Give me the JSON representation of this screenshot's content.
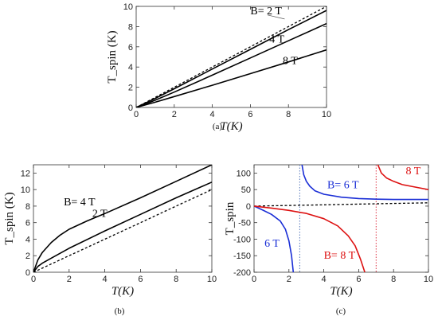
{
  "chart_data": [
    {
      "type": "line",
      "caption": "(a)",
      "xlabel": "T(K)",
      "ylabel": "T_spin (K)",
      "xlim": [
        0,
        10
      ],
      "ylim": [
        0,
        10
      ],
      "xticks": [
        0,
        2,
        4,
        6,
        8,
        10
      ],
      "yticks": [
        0,
        2,
        4,
        6,
        8,
        10
      ],
      "series": [
        {
          "style": "dashed",
          "color": "#000000",
          "x": [
            0,
            2,
            4,
            6,
            8,
            10
          ],
          "y": [
            0,
            2,
            4,
            6,
            8,
            10
          ]
        },
        {
          "name": "B= 2 T",
          "style": "solid",
          "color": "#000000",
          "x": [
            0,
            1,
            2,
            4,
            6,
            8,
            10
          ],
          "y": [
            0,
            0.9,
            1.85,
            3.8,
            5.75,
            7.7,
            9.6
          ]
        },
        {
          "name": "4 T",
          "style": "solid",
          "color": "#000000",
          "x": [
            0,
            1,
            2,
            4,
            6,
            8,
            10
          ],
          "y": [
            0,
            0.72,
            1.52,
            3.2,
            4.9,
            6.6,
            8.3
          ]
        },
        {
          "name": "8 T",
          "style": "solid",
          "color": "#000000",
          "x": [
            0,
            1,
            2,
            4,
            6,
            8,
            10
          ],
          "y": [
            0,
            0.52,
            1.08,
            2.2,
            3.35,
            4.5,
            5.7
          ]
        }
      ],
      "annotations": [
        {
          "text": "B= 2 T",
          "x": 6.0,
          "y": 9.2,
          "color": "#000000"
        },
        {
          "text": "4 T",
          "x": 7.0,
          "y": 6.4,
          "color": "#000000"
        },
        {
          "text": "8 T",
          "x": 7.7,
          "y": 4.3,
          "color": "#000000"
        }
      ],
      "pointer": {
        "from": [
          6.9,
          9.15
        ],
        "to": [
          7.8,
          8.75
        ]
      }
    },
    {
      "type": "line",
      "caption": "(b)",
      "xlabel": "T(K)",
      "ylabel": "T_spin (K)",
      "xlim": [
        0,
        10
      ],
      "ylim": [
        0,
        13
      ],
      "xticks": [
        0,
        2,
        4,
        6,
        8,
        10
      ],
      "yticks": [
        0,
        2,
        4,
        6,
        8,
        10,
        12
      ],
      "series": [
        {
          "style": "dashed",
          "color": "#000000",
          "x": [
            0,
            2,
            4,
            6,
            8,
            10
          ],
          "y": [
            0,
            2,
            4,
            6,
            8,
            10
          ]
        },
        {
          "name": "2 T",
          "style": "solid",
          "color": "#000000",
          "x": [
            0,
            0.25,
            0.5,
            1,
            2,
            4,
            6,
            8,
            10
          ],
          "y": [
            0,
            0.7,
            1.1,
            1.7,
            2.9,
            5.0,
            7.0,
            9.0,
            10.9
          ]
        },
        {
          "name": "B= 4 T",
          "style": "solid",
          "color": "#000000",
          "x": [
            0,
            0.25,
            0.5,
            1,
            1.5,
            2,
            3,
            4,
            6,
            8,
            10
          ],
          "y": [
            0,
            1.5,
            2.4,
            3.6,
            4.5,
            5.2,
            6.2,
            7.1,
            9.0,
            11.0,
            13.0
          ]
        }
      ],
      "annotations": [
        {
          "text": "B= 4 T",
          "x": 1.7,
          "y": 8.1,
          "color": "#000000"
        },
        {
          "text": "2 T",
          "x": 3.3,
          "y": 6.7,
          "color": "#000000"
        }
      ]
    },
    {
      "type": "line",
      "caption": "(c)",
      "xlabel": "T(K)",
      "ylabel": "T_spin",
      "xlim": [
        0,
        10
      ],
      "ylim": [
        -200,
        125
      ],
      "xticks": [
        0,
        2,
        4,
        6,
        8,
        10
      ],
      "yticks": [
        -200,
        -150,
        -100,
        -50,
        0,
        50,
        100
      ],
      "vlines": [
        {
          "x": 2.62,
          "color": "#5577bb",
          "style": "dotted"
        },
        {
          "x": 7.0,
          "color": "#dd3344",
          "style": "dotted"
        }
      ],
      "series": [
        {
          "style": "dashed",
          "color": "#000000",
          "x": [
            0,
            2,
            4,
            6,
            8,
            10
          ],
          "y": [
            0,
            2,
            4,
            6,
            8,
            10
          ]
        },
        {
          "name": "B= 6 T",
          "style": "solid",
          "color": "#1a2ed6",
          "x": [
            2.75,
            2.85,
            3.0,
            3.2,
            3.5,
            4.0,
            5.0,
            6.0,
            7.0,
            8.0,
            10.0
          ],
          "y": [
            125,
            95,
            75,
            60,
            46,
            36,
            27,
            23,
            21,
            20,
            20
          ]
        },
        {
          "name": "6 T",
          "style": "solid",
          "color": "#1a2ed6",
          "x": [
            0,
            0.5,
            1.0,
            1.5,
            1.8,
            2.0,
            2.15,
            2.25
          ],
          "y": [
            0,
            -12,
            -25,
            -45,
            -70,
            -105,
            -150,
            -200
          ]
        },
        {
          "name": "8 T",
          "style": "solid",
          "color": "#dd1111",
          "x": [
            7.1,
            7.3,
            7.6,
            8.0,
            8.5,
            9.0,
            10.0
          ],
          "y": [
            125,
            100,
            85,
            75,
            65,
            60,
            50
          ]
        },
        {
          "name": "B= 8 T",
          "style": "solid",
          "color": "#dd1111",
          "x": [
            0,
            1,
            2,
            3,
            4,
            4.8,
            5.4,
            5.8,
            6.1,
            6.35
          ],
          "y": [
            0,
            -6,
            -13,
            -22,
            -38,
            -60,
            -90,
            -120,
            -160,
            -200
          ]
        }
      ],
      "annotations": [
        {
          "text": "B= 6 T",
          "x": 4.2,
          "y": 54,
          "color": "#1a2ed6"
        },
        {
          "text": "6 T",
          "x": 0.6,
          "y": -123,
          "color": "#1a2ed6"
        },
        {
          "text": "8 T",
          "x": 8.7,
          "y": 96,
          "color": "#dd1111"
        },
        {
          "text": "B= 8 T",
          "x": 4.0,
          "y": -159,
          "color": "#dd1111"
        }
      ]
    }
  ]
}
